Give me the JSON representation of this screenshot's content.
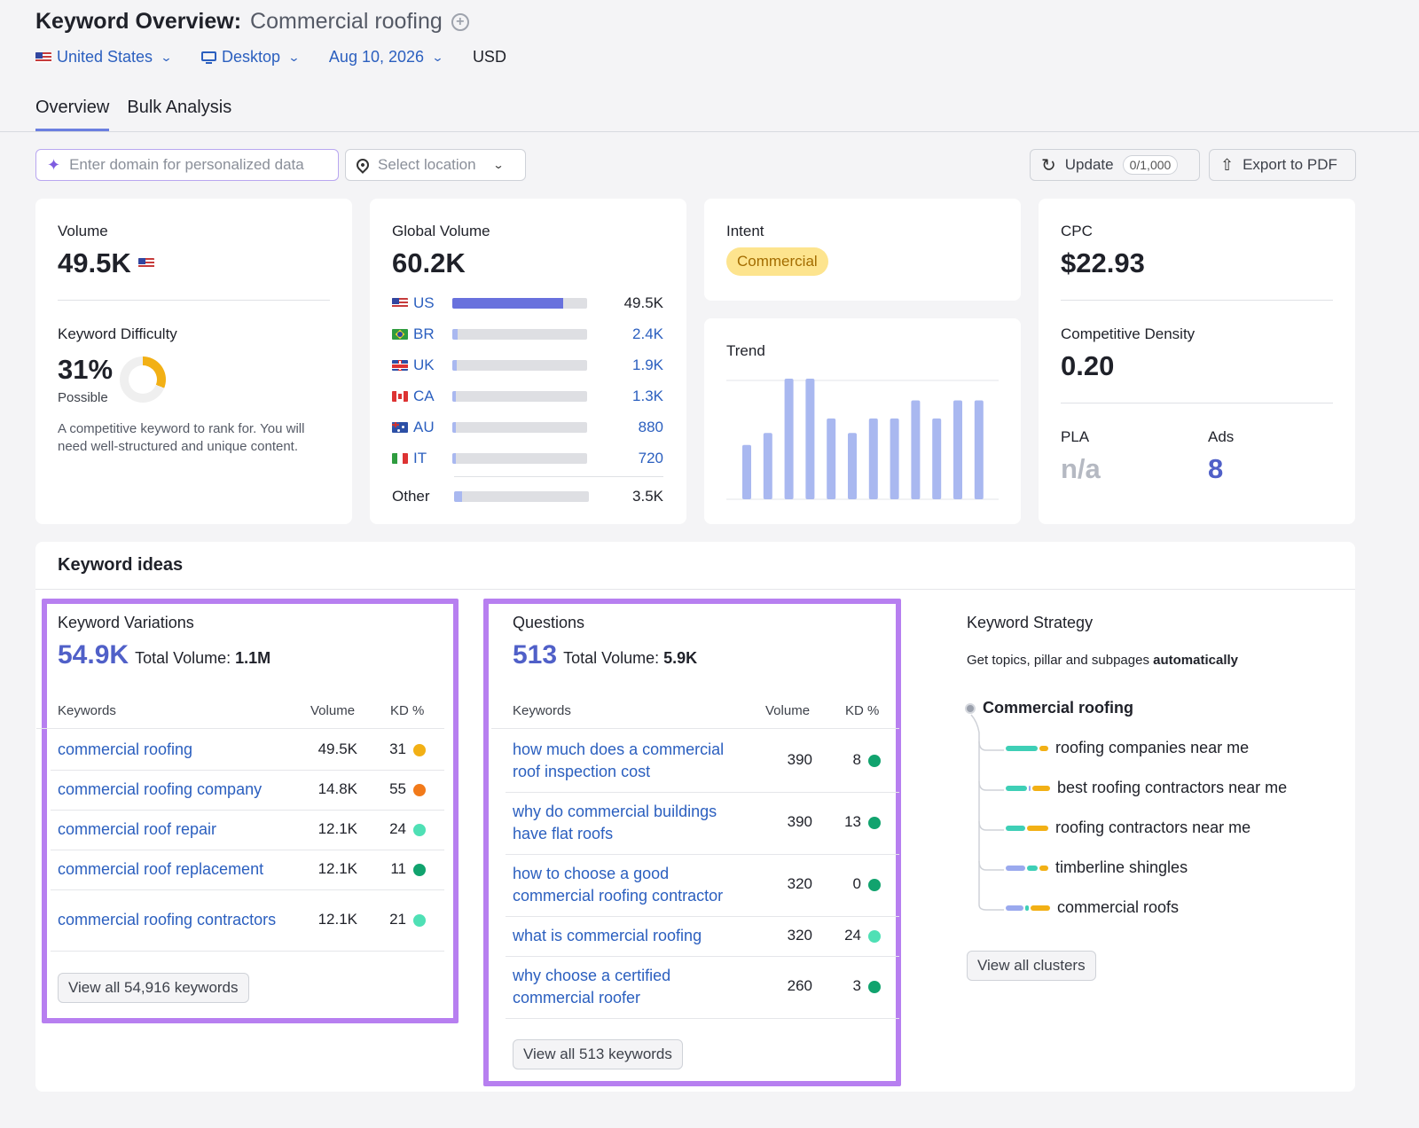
{
  "header": {
    "title_prefix": "Keyword Overview:",
    "keyword": "Commercial roofing",
    "plus_icon": "+",
    "filters": {
      "country": "United States",
      "device": "Desktop",
      "date": "Aug 10, 2026",
      "currency": "USD"
    }
  },
  "tabs": [
    "Overview",
    "Bulk Analysis"
  ],
  "toolbar": {
    "domain_placeholder": "Enter domain for personalized data",
    "location_placeholder": "Select location",
    "update_label": "Update",
    "update_count": "0/1,000",
    "export_label": "Export to PDF"
  },
  "volume_card": {
    "label": "Volume",
    "value": "49.5K",
    "kd_label": "Keyword Difficulty",
    "kd_value": "31%",
    "kd_percent": 31,
    "kd_status": "Possible",
    "kd_description": "A competitive keyword to rank for. You will need well-structured and unique content."
  },
  "global_card": {
    "label": "Global Volume",
    "value": "60.2K",
    "countries": [
      {
        "flag": "us",
        "code": "US",
        "value": "49.5K",
        "share": 0.82
      },
      {
        "flag": "br",
        "code": "BR",
        "value": "2.4K",
        "share": 0.04
      },
      {
        "flag": "uk",
        "code": "UK",
        "value": "1.9K",
        "share": 0.03
      },
      {
        "flag": "ca",
        "code": "CA",
        "value": "1.3K",
        "share": 0.02
      },
      {
        "flag": "au",
        "code": "AU",
        "value": "880",
        "share": 0.015
      },
      {
        "flag": "it",
        "code": "IT",
        "value": "720",
        "share": 0.012
      }
    ],
    "other_label": "Other",
    "other_value": "3.5K",
    "other_share": 0.06
  },
  "intent_card": {
    "label": "Intent",
    "badge": "Commercial"
  },
  "trend_card": {
    "label": "Trend",
    "chart_data": {
      "type": "bar",
      "values": [
        0.45,
        0.55,
        1.0,
        1.0,
        0.67,
        0.55,
        0.67,
        0.67,
        0.82,
        0.67,
        0.82,
        0.82
      ],
      "ylim": [
        0,
        1
      ],
      "color": "#a9b8f0"
    }
  },
  "cpc_card": {
    "label": "CPC",
    "value": "$22.93",
    "density_label": "Competitive Density",
    "density_value": "0.20",
    "pla_label": "PLA",
    "pla_value": "n/a",
    "ads_label": "Ads",
    "ads_value": "8"
  },
  "ideas": {
    "title": "Keyword ideas",
    "variations": {
      "title": "Keyword Variations",
      "count": "54.9K",
      "total_label": "Total Volume:",
      "total_value": "1.1M",
      "col_kw": "Keywords",
      "col_vol": "Volume",
      "col_kd": "KD %",
      "rows": [
        {
          "kw": "commercial roofing",
          "vol": "49.5K",
          "kd": "31",
          "color": "#f2b015"
        },
        {
          "kw": "commercial roofing company",
          "vol": "14.8K",
          "kd": "55",
          "color": "#f27a1a"
        },
        {
          "kw": "commercial roof repair",
          "vol": "12.1K",
          "kd": "24",
          "color": "#4fe0b5"
        },
        {
          "kw": "commercial roof replacement",
          "vol": "12.1K",
          "kd": "11",
          "color": "#11a36e"
        },
        {
          "kw": "commercial roofing contractors",
          "vol": "12.1K",
          "kd": "21",
          "color": "#4fe0b5"
        }
      ],
      "view_all": "View all 54,916 keywords"
    },
    "questions": {
      "title": "Questions",
      "count": "513",
      "total_label": "Total Volume:",
      "total_value": "5.9K",
      "col_kw": "Keywords",
      "col_vol": "Volume",
      "col_kd": "KD %",
      "rows": [
        {
          "kw": "how much does a commercial roof inspection cost",
          "vol": "390",
          "kd": "8",
          "color": "#11a36e"
        },
        {
          "kw": "why do commercial buildings have flat roofs",
          "vol": "390",
          "kd": "13",
          "color": "#11a36e"
        },
        {
          "kw": "how to choose a good commercial roofing contractor",
          "vol": "320",
          "kd": "0",
          "color": "#11a36e"
        },
        {
          "kw": "what is commercial roofing",
          "vol": "320",
          "kd": "24",
          "color": "#4fe0b5"
        },
        {
          "kw": "why choose a certified commercial roofer",
          "vol": "260",
          "kd": "3",
          "color": "#11a36e"
        }
      ],
      "view_all": "View all 513 keywords"
    },
    "strategy": {
      "title": "Keyword Strategy",
      "subtitle_plain": "Get topics, pillar and subpages ",
      "subtitle_bold": "automatically",
      "root": "Commercial roofing",
      "items": [
        {
          "label": "roofing companies near me",
          "segments": [
            {
              "c": "#3ecfb6",
              "w": 36
            },
            {
              "c": "#f2b015",
              "w": 10
            }
          ]
        },
        {
          "label": "best roofing contractors near me",
          "segments": [
            {
              "c": "#3ecfb6",
              "w": 24
            },
            {
              "c": "#9aa9ee",
              "w": 2
            },
            {
              "c": "#f2b015",
              "w": 20
            }
          ]
        },
        {
          "label": "roofing contractors near me",
          "segments": [
            {
              "c": "#3ecfb6",
              "w": 22
            },
            {
              "c": "#f2b015",
              "w": 24
            }
          ]
        },
        {
          "label": "timberline shingles",
          "segments": [
            {
              "c": "#9aa9ee",
              "w": 22
            },
            {
              "c": "#3ecfb6",
              "w": 12
            },
            {
              "c": "#f2b015",
              "w": 10
            }
          ]
        },
        {
          "label": "commercial roofs",
          "segments": [
            {
              "c": "#9aa9ee",
              "w": 20
            },
            {
              "c": "#3ecfb6",
              "w": 4
            },
            {
              "c": "#f2b015",
              "w": 22
            }
          ]
        }
      ],
      "view_all": "View all clusters"
    }
  }
}
